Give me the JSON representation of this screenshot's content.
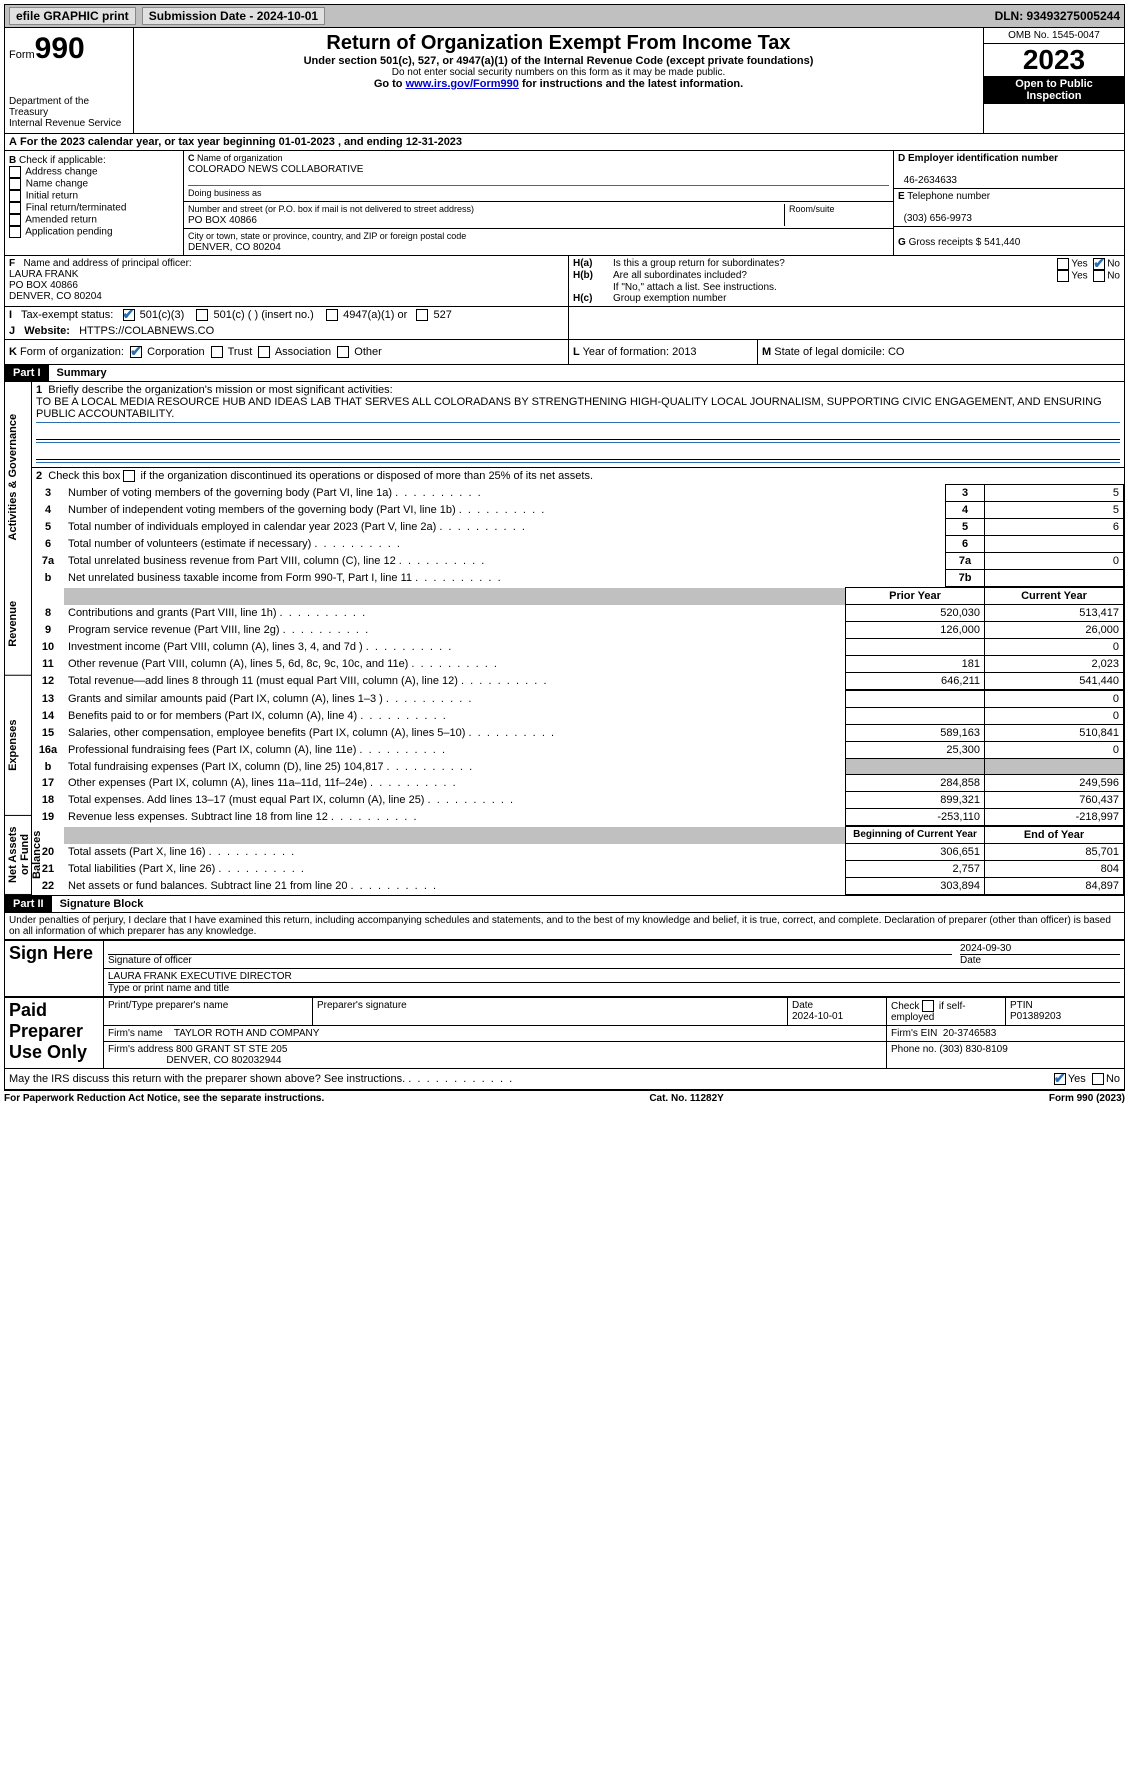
{
  "topbar": {
    "efile": "efile GRAPHIC print",
    "submission": "Submission Date - 2024-10-01",
    "dln": "DLN: 93493275005244"
  },
  "header": {
    "form_label": "Form",
    "form_number": "990",
    "dept": "Department of the Treasury",
    "irs": "Internal Revenue Service",
    "title": "Return of Organization Exempt From Income Tax",
    "subtitle": "Under section 501(c), 527, or 4947(a)(1) of the Internal Revenue Code (except private foundations)",
    "warn": "Do not enter social security numbers on this form as it may be made public.",
    "goto": "Go to ",
    "goto_link": "www.irs.gov/Form990",
    "goto_suffix": " for instructions and the latest information.",
    "omb": "OMB No. 1545-0047",
    "year": "2023",
    "open": "Open to Public Inspection"
  },
  "lineA": "For the 2023 calendar year, or tax year beginning 01-01-2023   , and ending 12-31-2023",
  "boxB": {
    "title": "Check if applicable:",
    "opts": [
      "Address change",
      "Name change",
      "Initial return",
      "Final return/terminated",
      "Amended return",
      "Application pending"
    ]
  },
  "boxC": {
    "name_label": "Name of organization",
    "name": "COLORADO NEWS COLLABORATIVE",
    "dba_label": "Doing business as",
    "addr_label": "Number and street (or P.O. box if mail is not delivered to street address)",
    "addr": "PO BOX 40866",
    "room_label": "Room/suite",
    "city_label": "City or town, state or province, country, and ZIP or foreign postal code",
    "city": "DENVER, CO  80204"
  },
  "boxD": {
    "label": "Employer identification number",
    "val": "46-2634633"
  },
  "boxE": {
    "label": "Telephone number",
    "val": "(303) 656-9973"
  },
  "boxG": {
    "label": "Gross receipts $",
    "val": "541,440"
  },
  "boxF": {
    "label": "Name and address of principal officer:",
    "name": "LAURA FRANK",
    "addr1": "PO BOX 40866",
    "addr2": "DENVER, CO  80204"
  },
  "boxH": {
    "a": "Is this a group return for subordinates?",
    "b": "Are all subordinates included?",
    "b_note": "If \"No,\" attach a list. See instructions.",
    "c": "Group exemption number"
  },
  "boxI": {
    "label": "Tax-exempt status:",
    "o1": "501(c)(3)",
    "o2": "501(c) (  ) (insert no.)",
    "o3": "4947(a)(1) or",
    "o4": "527"
  },
  "boxJ": {
    "label": "Website:",
    "val": "HTTPS://COLABNEWS.CO"
  },
  "boxK": {
    "label": "Form of organization:",
    "o1": "Corporation",
    "o2": "Trust",
    "o3": "Association",
    "o4": "Other"
  },
  "boxL": {
    "label": "Year of formation:",
    "val": "2013"
  },
  "boxM": {
    "label": "State of legal domicile:",
    "val": "CO"
  },
  "part1": {
    "header": "Part I",
    "title": "Summary",
    "q1_label": "Briefly describe the organization's mission or most significant activities:",
    "q1": "TO BE A LOCAL MEDIA RESOURCE HUB AND IDEAS LAB THAT SERVES ALL COLORADANS BY STRENGTHENING HIGH-QUALITY LOCAL JOURNALISM, SUPPORTING CIVIC ENGAGEMENT, AND ENSURING PUBLIC ACCOUNTABILITY.",
    "q2": "Check this box       if the organization discontinued its operations or disposed of more than 25% of its net assets.",
    "sections": {
      "gov": "Activities & Governance",
      "rev": "Revenue",
      "exp": "Expenses",
      "net": "Net Assets or Fund Balances"
    },
    "rows_gov": [
      {
        "n": "3",
        "d": "Number of voting members of the governing body (Part VI, line 1a)",
        "k": "3",
        "v": "5"
      },
      {
        "n": "4",
        "d": "Number of independent voting members of the governing body (Part VI, line 1b)",
        "k": "4",
        "v": "5"
      },
      {
        "n": "5",
        "d": "Total number of individuals employed in calendar year 2023 (Part V, line 2a)",
        "k": "5",
        "v": "6"
      },
      {
        "n": "6",
        "d": "Total number of volunteers (estimate if necessary)",
        "k": "6",
        "v": ""
      },
      {
        "n": "7a",
        "d": "Total unrelated business revenue from Part VIII, column (C), line 12",
        "k": "7a",
        "v": "0"
      },
      {
        "n": "b",
        "d": "Net unrelated business taxable income from Form 990-T, Part I, line 11",
        "k": "7b",
        "v": ""
      }
    ],
    "cols": {
      "py": "Prior Year",
      "cy": "Current Year",
      "bcy": "Beginning of Current Year",
      "eoy": "End of Year"
    },
    "rows_rev": [
      {
        "n": "8",
        "d": "Contributions and grants (Part VIII, line 1h)",
        "py": "520,030",
        "cy": "513,417"
      },
      {
        "n": "9",
        "d": "Program service revenue (Part VIII, line 2g)",
        "py": "126,000",
        "cy": "26,000"
      },
      {
        "n": "10",
        "d": "Investment income (Part VIII, column (A), lines 3, 4, and 7d )",
        "py": "",
        "cy": "0"
      },
      {
        "n": "11",
        "d": "Other revenue (Part VIII, column (A), lines 5, 6d, 8c, 9c, 10c, and 11e)",
        "py": "181",
        "cy": "2,023"
      },
      {
        "n": "12",
        "d": "Total revenue—add lines 8 through 11 (must equal Part VIII, column (A), line 12)",
        "py": "646,211",
        "cy": "541,440"
      }
    ],
    "rows_exp": [
      {
        "n": "13",
        "d": "Grants and similar amounts paid (Part IX, column (A), lines 1–3 )",
        "py": "",
        "cy": "0"
      },
      {
        "n": "14",
        "d": "Benefits paid to or for members (Part IX, column (A), line 4)",
        "py": "",
        "cy": "0"
      },
      {
        "n": "15",
        "d": "Salaries, other compensation, employee benefits (Part IX, column (A), lines 5–10)",
        "py": "589,163",
        "cy": "510,841"
      },
      {
        "n": "16a",
        "d": "Professional fundraising fees (Part IX, column (A), line 11e)",
        "py": "25,300",
        "cy": "0"
      },
      {
        "n": "b",
        "d": "Total fundraising expenses (Part IX, column (D), line 25) 104,817",
        "py": "shade",
        "cy": "shade"
      },
      {
        "n": "17",
        "d": "Other expenses (Part IX, column (A), lines 11a–11d, 11f–24e)",
        "py": "284,858",
        "cy": "249,596"
      },
      {
        "n": "18",
        "d": "Total expenses. Add lines 13–17 (must equal Part IX, column (A), line 25)",
        "py": "899,321",
        "cy": "760,437"
      },
      {
        "n": "19",
        "d": "Revenue less expenses. Subtract line 18 from line 12",
        "py": "-253,110",
        "cy": "-218,997"
      }
    ],
    "rows_net": [
      {
        "n": "20",
        "d": "Total assets (Part X, line 16)",
        "py": "306,651",
        "cy": "85,701"
      },
      {
        "n": "21",
        "d": "Total liabilities (Part X, line 26)",
        "py": "2,757",
        "cy": "804"
      },
      {
        "n": "22",
        "d": "Net assets or fund balances. Subtract line 21 from line 20",
        "py": "303,894",
        "cy": "84,897"
      }
    ]
  },
  "part2": {
    "header": "Part II",
    "title": "Signature Block",
    "decl": "Under penalties of perjury, I declare that I have examined this return, including accompanying schedules and statements, and to the best of my knowledge and belief, it is true, correct, and complete. Declaration of preparer (other than officer) is based on all information of which preparer has any knowledge.",
    "sign_here": "Sign Here",
    "sig_officer": "Signature of officer",
    "sig_date": "2024-09-30",
    "officer_name": "LAURA FRANK EXECUTIVE DIRECTOR",
    "type_name": "Type or print name and title",
    "paid": "Paid Preparer Use Only",
    "pp_name_label": "Print/Type preparer's name",
    "pp_sig_label": "Preparer's signature",
    "pp_date_label": "Date",
    "pp_date": "2024-10-01",
    "pp_check": "Check       if self-employed",
    "ptin_label": "PTIN",
    "ptin": "P01389203",
    "firm_name_label": "Firm's name",
    "firm_name": "TAYLOR ROTH AND COMPANY",
    "firm_ein_label": "Firm's EIN",
    "firm_ein": "20-3746583",
    "firm_addr_label": "Firm's address",
    "firm_addr1": "800 GRANT ST STE 205",
    "firm_addr2": "DENVER, CO  802032944",
    "phone_label": "Phone no.",
    "phone": "(303) 830-8109",
    "discuss": "May the IRS discuss this return with the preparer shown above? See instructions."
  },
  "footer": {
    "left": "For Paperwork Reduction Act Notice, see the separate instructions.",
    "mid": "Cat. No. 11282Y",
    "right": "Form 990 (2023)"
  },
  "labels": {
    "yes": "Yes",
    "no": "No",
    "A": "A",
    "B": "B",
    "C": "C",
    "D": "D",
    "E": "E",
    "F": "F",
    "G": "G",
    "H_a": "H(a)",
    "H_b": "H(b)",
    "H_c": "H(c)",
    "I": "I",
    "J": "J",
    "K": "K",
    "L": "L",
    "M": "M"
  }
}
